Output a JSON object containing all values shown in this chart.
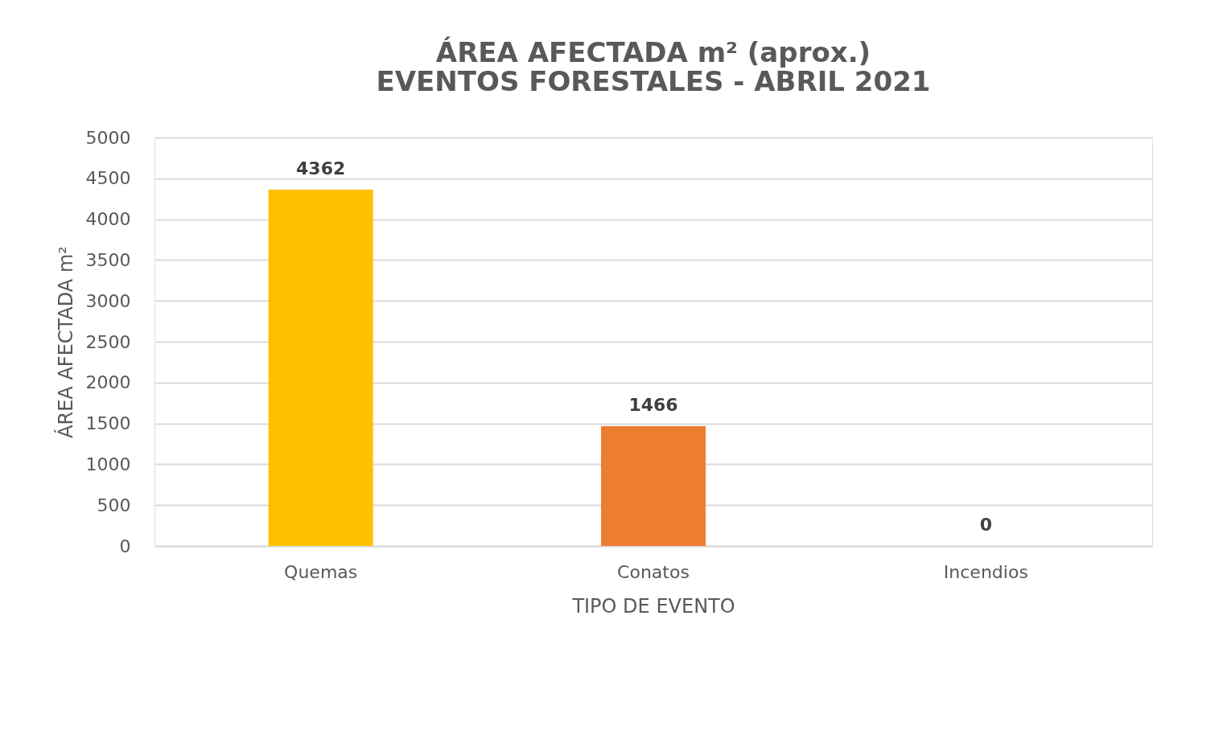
{
  "chart_data": {
    "type": "bar",
    "title": "ÁREA AFECTADA m² (aprox.)\nEVENTOS FORESTALES - ABRIL 2021",
    "xlabel": "TIPO DE EVENTO",
    "ylabel": "ÁREA AFECTADA m²",
    "categories": [
      "Quemas",
      "Conatos",
      "Incendios"
    ],
    "values": [
      4362,
      1466,
      0
    ],
    "colors": [
      "#ffc000",
      "#ed7d31",
      "#a5a5a5"
    ],
    "ylim": [
      0,
      5000
    ],
    "yticks": [
      0,
      500,
      1000,
      1500,
      2000,
      2500,
      3000,
      3500,
      4000,
      4500,
      5000
    ],
    "grid": "y",
    "data_labels": true
  }
}
